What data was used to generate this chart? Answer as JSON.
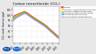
{
  "title": "Carbon tetrachloride (CCl₄)",
  "ylabel": "CCl₄ mole fraction (ppt)",
  "bg_color": "#e8e8e8",
  "plot_bg": "#ffffff",
  "year_start": 1978,
  "year_end": 2021,
  "ylim": [
    74,
    108
  ],
  "yticks": [
    80,
    85,
    90,
    95,
    100,
    105
  ],
  "xticks": [
    1980,
    1985,
    1990,
    1995,
    2000,
    2005,
    2010,
    2015,
    2020
  ],
  "legend_entries": [
    {
      "label": "AGAGE",
      "color": "#dd2222",
      "lw": 0.8
    },
    {
      "label": "AGAGE / GAGE background stations",
      "color": "#ff8800",
      "lw": 0.5
    },
    {
      "label": "AGAGE 2-station background",
      "color": "#aacc00",
      "lw": 0.5
    },
    {
      "label": "AGAGE Pollution-filtered mean",
      "color": "#33bb33",
      "lw": 0.5
    },
    {
      "label": "AGAGE Background Obs",
      "color": "#2299ee",
      "lw": 0.5
    },
    {
      "label": "AGAGE Reanalysis/Bootstrap",
      "color": "#cc77dd",
      "lw": 0.5
    }
  ],
  "lines": [
    {
      "color": "#dd2222",
      "lw": 0.9,
      "alpha": 0.9,
      "data_x": [
        1978,
        1979,
        1980,
        1981,
        1982,
        1983,
        1984,
        1985,
        1986,
        1987,
        1988,
        1989,
        1990,
        1991,
        1992,
        1993,
        1994,
        1995,
        1996,
        1997,
        1998,
        1999,
        2000,
        2001,
        2002,
        2003,
        2004,
        2005,
        2006,
        2007,
        2008,
        2009,
        2010,
        2011,
        2012,
        2013,
        2014,
        2015,
        2016,
        2017,
        2018,
        2019,
        2020
      ],
      "data_y": [
        98.0,
        98.8,
        99.5,
        100.0,
        100.5,
        101.0,
        101.5,
        101.8,
        102.2,
        102.6,
        103.0,
        103.2,
        103.0,
        102.5,
        101.8,
        101.0,
        100.2,
        99.5,
        98.8,
        98.2,
        97.5,
        96.8,
        96.2,
        95.5,
        94.9,
        94.2,
        93.6,
        93.0,
        92.3,
        91.6,
        90.8,
        90.0,
        89.1,
        88.2,
        87.3,
        86.4,
        85.5,
        84.6,
        83.7,
        82.8,
        81.9,
        81.0,
        80.1
      ]
    },
    {
      "color": "#ff8800",
      "lw": 0.6,
      "alpha": 0.85,
      "data_x": [
        1978,
        1979,
        1980,
        1981,
        1982,
        1983,
        1984,
        1985,
        1986,
        1987,
        1988,
        1989,
        1990,
        1991,
        1992,
        1993,
        1994,
        1995,
        1996,
        1997,
        1998,
        1999,
        2000,
        2001,
        2002,
        2003,
        2004,
        2005,
        2006,
        2007,
        2008,
        2009,
        2010,
        2011,
        2012,
        2013,
        2014,
        2015,
        2016,
        2017,
        2018,
        2019,
        2020
      ],
      "data_y": [
        97.2,
        98.1,
        98.9,
        99.5,
        100.1,
        100.6,
        101.1,
        101.5,
        101.9,
        102.3,
        102.7,
        103.0,
        102.7,
        102.2,
        101.5,
        100.7,
        99.9,
        99.2,
        98.5,
        97.9,
        97.2,
        96.5,
        95.9,
        95.2,
        94.6,
        93.9,
        93.3,
        92.7,
        92.0,
        91.3,
        90.5,
        89.7,
        88.8,
        87.9,
        87.0,
        86.1,
        85.2,
        84.3,
        83.4,
        82.5,
        81.6,
        80.7,
        79.8
      ]
    },
    {
      "color": "#aacc00",
      "lw": 0.6,
      "alpha": 0.85,
      "data_x": [
        1978,
        1979,
        1980,
        1981,
        1982,
        1983,
        1984,
        1985,
        1986,
        1987,
        1988,
        1989,
        1990,
        1991,
        1992,
        1993,
        1994,
        1995,
        1996,
        1997,
        1998,
        1999,
        2000,
        2001,
        2002,
        2003,
        2004,
        2005,
        2006,
        2007,
        2008,
        2009,
        2010,
        2011,
        2012,
        2013,
        2014,
        2015,
        2016,
        2017,
        2018,
        2019,
        2020
      ],
      "data_y": [
        96.5,
        97.3,
        98.2,
        98.8,
        99.4,
        99.9,
        100.5,
        100.9,
        101.3,
        101.8,
        102.3,
        102.6,
        102.3,
        101.8,
        101.1,
        100.3,
        99.5,
        98.8,
        98.1,
        97.5,
        96.8,
        96.1,
        95.5,
        94.8,
        94.2,
        93.5,
        92.9,
        92.3,
        91.6,
        90.9,
        90.1,
        89.3,
        88.4,
        87.5,
        86.6,
        85.7,
        84.8,
        83.9,
        83.0,
        82.1,
        81.2,
        80.3,
        79.4
      ]
    },
    {
      "color": "#33bb33",
      "lw": 0.6,
      "alpha": 0.85,
      "data_x": [
        1978,
        1979,
        1980,
        1981,
        1982,
        1983,
        1984,
        1985,
        1986,
        1987,
        1988,
        1989,
        1990,
        1991,
        1992,
        1993,
        1994,
        1995,
        1996,
        1997,
        1998,
        1999,
        2000,
        2001,
        2002,
        2003,
        2004,
        2005,
        2006,
        2007,
        2008,
        2009,
        2010,
        2011,
        2012,
        2013,
        2014,
        2015,
        2016,
        2017,
        2018,
        2019,
        2020
      ],
      "data_y": [
        95.8,
        96.7,
        97.5,
        98.2,
        98.8,
        99.3,
        99.9,
        100.3,
        100.8,
        101.3,
        101.8,
        102.2,
        101.9,
        101.4,
        100.7,
        99.9,
        99.1,
        98.4,
        97.7,
        97.1,
        96.4,
        95.7,
        95.1,
        94.4,
        93.8,
        93.1,
        92.5,
        91.9,
        91.2,
        90.5,
        89.7,
        88.9,
        88.0,
        87.1,
        86.2,
        85.3,
        84.4,
        83.5,
        82.6,
        81.7,
        80.8,
        79.9,
        79.0
      ]
    },
    {
      "color": "#2299ee",
      "lw": 0.6,
      "alpha": 0.85,
      "data_x": [
        1978,
        1979,
        1980,
        1981,
        1982,
        1983,
        1984,
        1985,
        1986,
        1987,
        1988,
        1989,
        1990,
        1991,
        1992,
        1993,
        1994,
        1995,
        1996,
        1997,
        1998,
        1999,
        2000,
        2001,
        2002,
        2003,
        2004,
        2005,
        2006,
        2007,
        2008,
        2009,
        2010,
        2011,
        2012,
        2013,
        2014,
        2015,
        2016,
        2017,
        2018,
        2019,
        2020
      ],
      "data_y": [
        95.0,
        95.9,
        96.8,
        97.5,
        98.1,
        98.6,
        99.2,
        99.7,
        100.2,
        100.8,
        101.4,
        101.8,
        101.5,
        101.0,
        100.3,
        99.5,
        98.7,
        98.0,
        97.3,
        96.7,
        96.0,
        95.3,
        94.7,
        94.0,
        93.4,
        92.7,
        92.1,
        91.5,
        90.8,
        90.1,
        89.3,
        88.5,
        87.6,
        86.7,
        85.8,
        84.9,
        84.0,
        83.1,
        82.2,
        81.3,
        80.4,
        79.5,
        78.6
      ]
    },
    {
      "color": "#cc77dd",
      "lw": 0.6,
      "alpha": 0.85,
      "data_x": [
        1978,
        1979,
        1980,
        1981,
        1982,
        1983,
        1984,
        1985,
        1986,
        1987,
        1988,
        1989,
        1990,
        1991,
        1992,
        1993,
        1994,
        1995,
        1996,
        1997,
        1998,
        1999,
        2000,
        2001,
        2002,
        2003,
        2004,
        2005,
        2006,
        2007,
        2008,
        2009,
        2010,
        2011,
        2012,
        2013,
        2014,
        2015,
        2016,
        2017,
        2018,
        2019,
        2020
      ],
      "data_y": [
        94.2,
        95.1,
        96.0,
        96.7,
        97.4,
        97.9,
        98.5,
        99.1,
        99.7,
        100.3,
        100.9,
        101.4,
        101.1,
        100.6,
        99.9,
        99.1,
        98.3,
        97.6,
        96.9,
        96.3,
        95.6,
        94.9,
        94.3,
        93.6,
        93.0,
        92.3,
        91.7,
        91.1,
        90.4,
        89.7,
        88.9,
        88.1,
        87.2,
        86.3,
        85.4,
        84.5,
        83.6,
        82.7,
        81.8,
        80.9,
        80.0,
        79.1,
        78.2
      ]
    }
  ],
  "noaa_color": "#1155aa",
  "agage_color": "#1166cc",
  "noaa_text": "NOAA",
  "agage_text": "AGAGE"
}
